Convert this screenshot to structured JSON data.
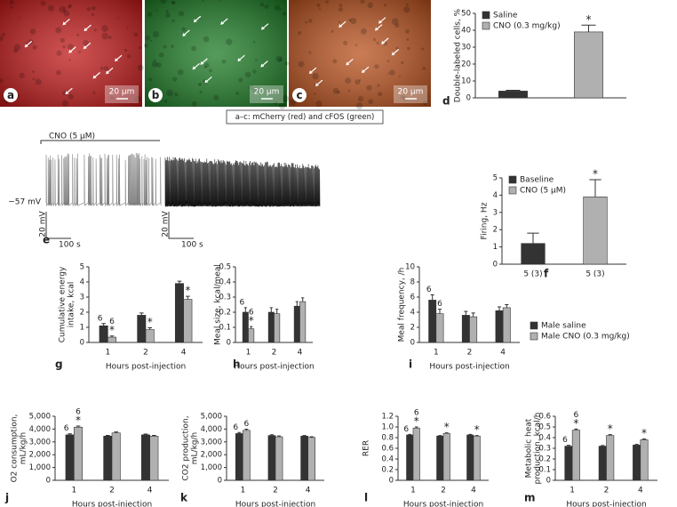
{
  "images": [
    {
      "panel": "a",
      "scale": "20 µm",
      "color": "#c01818"
    },
    {
      "panel": "b",
      "scale": "20 µm",
      "color": "#1c7a24"
    },
    {
      "panel": "c",
      "scale": "20 µm",
      "color": "#b8501c"
    }
  ],
  "caption": "a–c: mCherry (red) and cFOS (green)",
  "trace": {
    "panel": "e",
    "label": "CNO (5 µM)",
    "potential": "−57 mV",
    "scale_v": [
      "20 mV",
      "20 mV"
    ],
    "scale_t": [
      "100 s",
      "100 s"
    ]
  },
  "chart_data": [
    {
      "type": "bar",
      "panel": "d",
      "ylabel": [
        "Double-labeled cells, %"
      ],
      "ylim": [
        0,
        50
      ],
      "yticks": [
        0,
        10,
        20,
        30,
        40,
        50
      ],
      "legend": "upper left",
      "series": [
        {
          "name": "Saline",
          "color": "#333333",
          "values": [
            4
          ],
          "errors": [
            0.5
          ]
        },
        {
          "name": "CNO (0.3 mg/kg)",
          "color": "#b0b0b0",
          "values": [
            39
          ],
          "errors": [
            4
          ],
          "stars": [
            "*"
          ]
        }
      ]
    },
    {
      "type": "bar",
      "panel": "f",
      "ylabel": [
        "Firing, Hz"
      ],
      "ylim": [
        0,
        5
      ],
      "yticks": [
        0,
        1,
        2,
        3,
        4,
        5
      ],
      "legend": "upper left",
      "series": [
        {
          "name": "Baseline",
          "color": "#333333",
          "values": [
            1.2
          ],
          "errors": [
            0.6
          ],
          "category": "5 (3)"
        },
        {
          "name": "CNO (5 µM)",
          "color": "#b0b0b0",
          "values": [
            3.9
          ],
          "errors": [
            1.0
          ],
          "stars": [
            "*"
          ],
          "category": "5 (3)"
        }
      ]
    },
    {
      "type": "bar",
      "panel": "g",
      "ylabel": [
        "Cumulative energy",
        "intake, kcal"
      ],
      "xlabel": "Hours post-injection",
      "categories": [
        "1",
        "2",
        "4"
      ],
      "ylim": [
        0,
        5
      ],
      "yticks": [
        0,
        1,
        2,
        3,
        4,
        5
      ],
      "legend": "outside right",
      "series": [
        {
          "name": "Male saline",
          "color": "#333333",
          "values": [
            1.1,
            1.8,
            3.9
          ],
          "errors": [
            0.15,
            0.15,
            0.15
          ],
          "n_labels": [
            "6",
            null,
            null
          ]
        },
        {
          "name": "Male CNO (0.3 mg/kg)",
          "color": "#b0b0b0",
          "values": [
            0.35,
            0.85,
            2.85
          ],
          "errors": [
            0.08,
            0.12,
            0.2
          ],
          "n_labels": [
            "6",
            null,
            null
          ],
          "stars": [
            "*",
            "*",
            "*"
          ]
        }
      ]
    },
    {
      "type": "bar",
      "panel": "h",
      "ylabel": [
        "Meal size, kcal/meal"
      ],
      "xlabel": "Hours post-injection",
      "categories": [
        "1",
        "2",
        "4"
      ],
      "ylim": [
        0,
        0.5
      ],
      "yticks": [
        0,
        0.1,
        0.2,
        0.3,
        0.4,
        0.5
      ],
      "series": [
        {
          "color": "#333333",
          "values": [
            0.2,
            0.2,
            0.24
          ],
          "errors": [
            0.03,
            0.03,
            0.03
          ],
          "n_labels": [
            "6",
            null,
            null
          ]
        },
        {
          "color": "#b0b0b0",
          "values": [
            0.09,
            0.19,
            0.27
          ],
          "errors": [
            0.015,
            0.03,
            0.025
          ],
          "n_labels": [
            "6",
            null,
            null
          ],
          "stars": [
            "*",
            null,
            null
          ]
        }
      ]
    },
    {
      "type": "bar",
      "panel": "i",
      "ylabel": [
        "Meal frequency, /h"
      ],
      "xlabel": "Hours post-injection",
      "categories": [
        "1",
        "2",
        "4"
      ],
      "ylim": [
        0,
        10
      ],
      "yticks": [
        0,
        2,
        4,
        6,
        8,
        10
      ],
      "series": [
        {
          "color": "#333333",
          "values": [
            5.6,
            3.6,
            4.2
          ],
          "errors": [
            0.7,
            0.5,
            0.5
          ],
          "n_labels": [
            "6",
            null,
            null
          ]
        },
        {
          "color": "#b0b0b0",
          "values": [
            3.8,
            3.4,
            4.6
          ],
          "errors": [
            0.6,
            0.5,
            0.4
          ],
          "n_labels": [
            "6",
            null,
            null
          ]
        }
      ]
    },
    {
      "type": "bar",
      "panel": "j",
      "ylabel": [
        "O2 consumption,",
        "mL/kg/h"
      ],
      "xlabel": "Hours post-injection",
      "categories": [
        "1",
        "2",
        "4"
      ],
      "ylim": [
        0,
        5000
      ],
      "yticks": [
        0,
        {
          "value": 1000,
          "label": "1,000"
        },
        {
          "value": 2000,
          "label": "2,000"
        },
        {
          "value": 3000,
          "label": "3,000"
        },
        {
          "value": 4000,
          "label": "4,000"
        },
        {
          "value": 5000,
          "label": "5,000"
        }
      ],
      "series": [
        {
          "color": "#333333",
          "values": [
            3550,
            3450,
            3550
          ],
          "errors": [
            80,
            60,
            60
          ],
          "n_labels": [
            "6",
            null,
            null
          ]
        },
        {
          "color": "#b0b0b0",
          "values": [
            4150,
            3700,
            3450
          ],
          "errors": [
            90,
            80,
            60
          ],
          "n_labels": [
            "6",
            null,
            null
          ],
          "stars": [
            "*",
            null,
            null
          ]
        }
      ]
    },
    {
      "type": "bar",
      "panel": "k",
      "ylabel": [
        "CO2 production,",
        "mL/kg/h"
      ],
      "xlabel": "Hours post-injection",
      "categories": [
        "1",
        "2",
        "4"
      ],
      "ylim": [
        0,
        5000
      ],
      "yticks": [
        0,
        {
          "value": 1000,
          "label": "1,000"
        },
        {
          "value": 2000,
          "label": "2,000"
        },
        {
          "value": 3000,
          "label": "3,000"
        },
        {
          "value": 4000,
          "label": "4,000"
        },
        {
          "value": 5000,
          "label": "5,000"
        }
      ],
      "series": [
        {
          "color": "#333333",
          "values": [
            3650,
            3500,
            3450
          ],
          "errors": [
            80,
            60,
            50
          ],
          "n_labels": [
            "6",
            null,
            null
          ]
        },
        {
          "color": "#b0b0b0",
          "values": [
            3900,
            3400,
            3350
          ],
          "errors": [
            90,
            60,
            50
          ],
          "n_labels": [
            "6",
            null,
            null
          ]
        }
      ]
    },
    {
      "type": "bar",
      "panel": "l",
      "ylabel": [
        "RER"
      ],
      "xlabel": "Hours post-injection",
      "categories": [
        "1",
        "2",
        "4"
      ],
      "ylim": [
        0,
        1.2
      ],
      "yticks": [
        0,
        0.2,
        0.4,
        0.6,
        0.8,
        {
          "value": 1,
          "label": "1.0"
        },
        1.2
      ],
      "series": [
        {
          "color": "#333333",
          "values": [
            0.85,
            0.83,
            0.85
          ],
          "errors": [
            0.01,
            0.01,
            0.01
          ],
          "n_labels": [
            "6",
            null,
            null
          ]
        },
        {
          "color": "#b0b0b0",
          "values": [
            0.98,
            0.88,
            0.83
          ],
          "errors": [
            0.02,
            0.01,
            0.01
          ],
          "n_labels": [
            "6",
            null,
            null
          ],
          "stars": [
            "*",
            "*",
            "*"
          ]
        }
      ]
    },
    {
      "type": "bar",
      "panel": "m",
      "ylabel": [
        "Metabolic heat",
        "production, kcal/h"
      ],
      "xlabel": "Hours post-injection",
      "categories": [
        "1",
        "2",
        "4"
      ],
      "ylim": [
        0,
        0.6
      ],
      "yticks": [
        0,
        0.1,
        0.2,
        0.3,
        0.4,
        0.5,
        0.6
      ],
      "series": [
        {
          "color": "#333333",
          "values": [
            0.32,
            0.32,
            0.33
          ],
          "errors": [
            0.008,
            0.006,
            0.006
          ],
          "n_labels": [
            "6",
            null,
            null
          ]
        },
        {
          "color": "#b0b0b0",
          "values": [
            0.47,
            0.42,
            0.38
          ],
          "errors": [
            0.01,
            0.008,
            0.008
          ],
          "n_labels": [
            "6",
            null,
            null
          ],
          "stars": [
            "*",
            "*",
            "*"
          ]
        }
      ]
    }
  ]
}
